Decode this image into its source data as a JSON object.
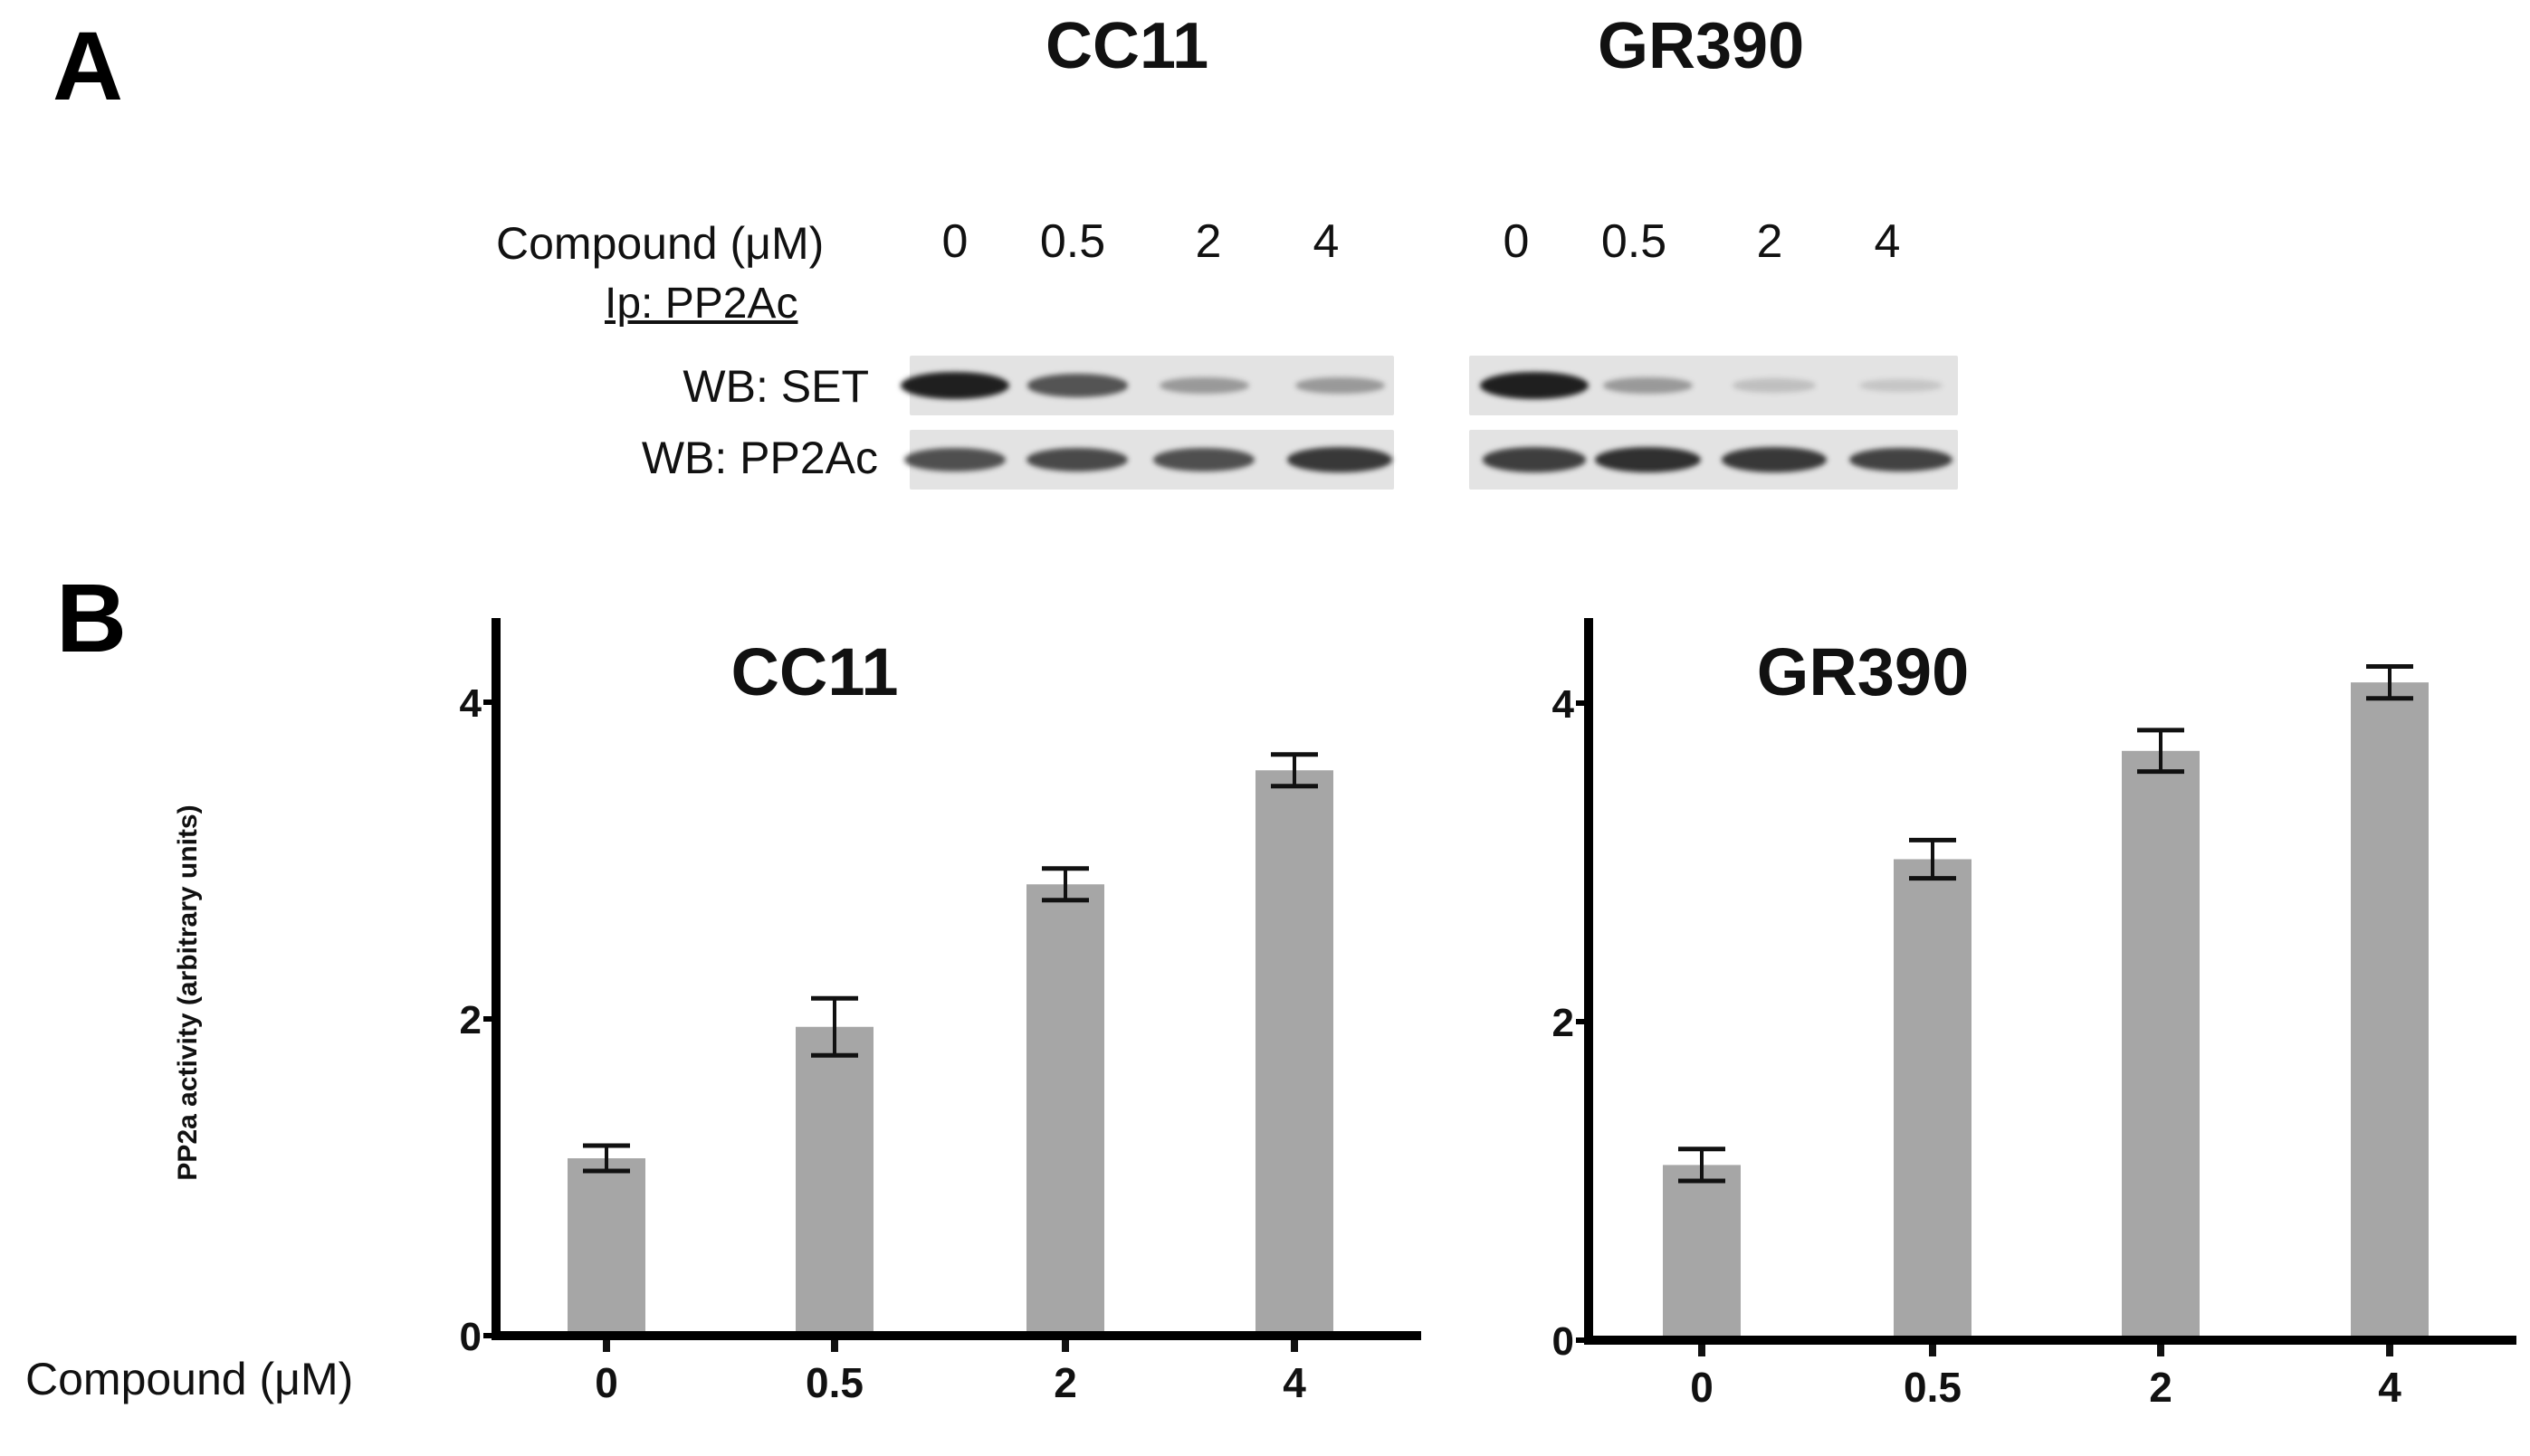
{
  "panel_a": {
    "letter": "A",
    "cell_lines": [
      "CC11",
      "GR390"
    ],
    "condition_label": "Compound (μM)",
    "doses": [
      "0",
      "0.5",
      "2",
      "4"
    ],
    "ip_label": "Ip: PP2Ac",
    "blots": [
      {
        "label": "WB: SET",
        "intensity": {
          "CC11": [
            1.0,
            0.7,
            0.3,
            0.3
          ],
          "GR390": [
            1.0,
            0.3,
            0.08,
            0.05
          ]
        }
      },
      {
        "label": "WB: PP2Ac",
        "intensity": {
          "CC11": [
            0.72,
            0.76,
            0.72,
            0.85
          ],
          "GR390": [
            0.82,
            0.9,
            0.85,
            0.8
          ]
        }
      }
    ]
  },
  "panel_b": {
    "letter": "B",
    "ylabel": "PP2a activity (arbitrary units)",
    "xlabel": "Compound (μM)"
  },
  "chart_data": [
    {
      "type": "bar",
      "title": "CC11",
      "categories": [
        "0",
        "0.5",
        "2",
        "4"
      ],
      "values": [
        1.12,
        1.95,
        2.85,
        3.57
      ],
      "error": [
        0.08,
        0.18,
        0.1,
        0.1
      ],
      "ylim": [
        0,
        4.5
      ],
      "yticks": [
        0,
        2,
        4
      ],
      "bar_color": "#a6a6a6"
    },
    {
      "type": "bar",
      "title": "GR390",
      "categories": [
        "0",
        "0.5",
        "2",
        "4"
      ],
      "values": [
        1.1,
        3.02,
        3.7,
        4.13
      ],
      "error": [
        0.1,
        0.12,
        0.13,
        0.1
      ],
      "ylim": [
        0,
        4.5
      ],
      "yticks": [
        0,
        2,
        4
      ],
      "bar_color": "#a6a6a6"
    }
  ]
}
